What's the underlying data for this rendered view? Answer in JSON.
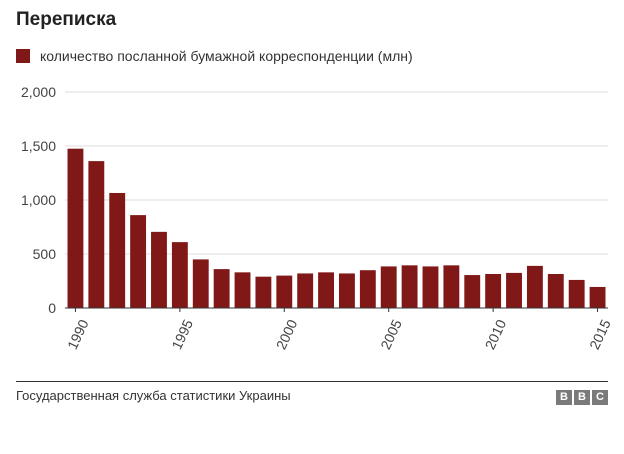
{
  "chart_data": {
    "type": "bar",
    "title": "Переписка",
    "series": [
      {
        "name": "количество посланной бумажной корреспонденции (млн)",
        "color": "#801818",
        "values": [
          1475,
          1360,
          1065,
          860,
          705,
          610,
          450,
          360,
          330,
          290,
          300,
          320,
          330,
          320,
          350,
          385,
          395,
          385,
          395,
          305,
          315,
          325,
          390,
          315,
          260,
          195
        ]
      }
    ],
    "categories": [
      "1990",
      "1991",
      "1992",
      "1993",
      "1994",
      "1995",
      "1996",
      "1997",
      "1998",
      "1999",
      "2000",
      "2001",
      "2002",
      "2003",
      "2004",
      "2005",
      "2006",
      "2007",
      "2008",
      "2009",
      "2010",
      "2011",
      "2012",
      "2013",
      "2014",
      "2015"
    ],
    "x_tick_labels": [
      "1990",
      "1995",
      "2000",
      "2005",
      "2010",
      "2015"
    ],
    "y_tick_labels": [
      "0",
      "500",
      "1,000",
      "1,500",
      "2,000"
    ],
    "y_ticks": [
      0,
      500,
      1000,
      1500,
      2000
    ],
    "ylim": [
      0,
      2000
    ],
    "xlabel": "",
    "ylabel": "",
    "grid": true,
    "legend_position": "top-left"
  },
  "footer": {
    "source": "Государственная служба статистики Украины",
    "logo_letters": [
      "B",
      "B",
      "C"
    ]
  }
}
